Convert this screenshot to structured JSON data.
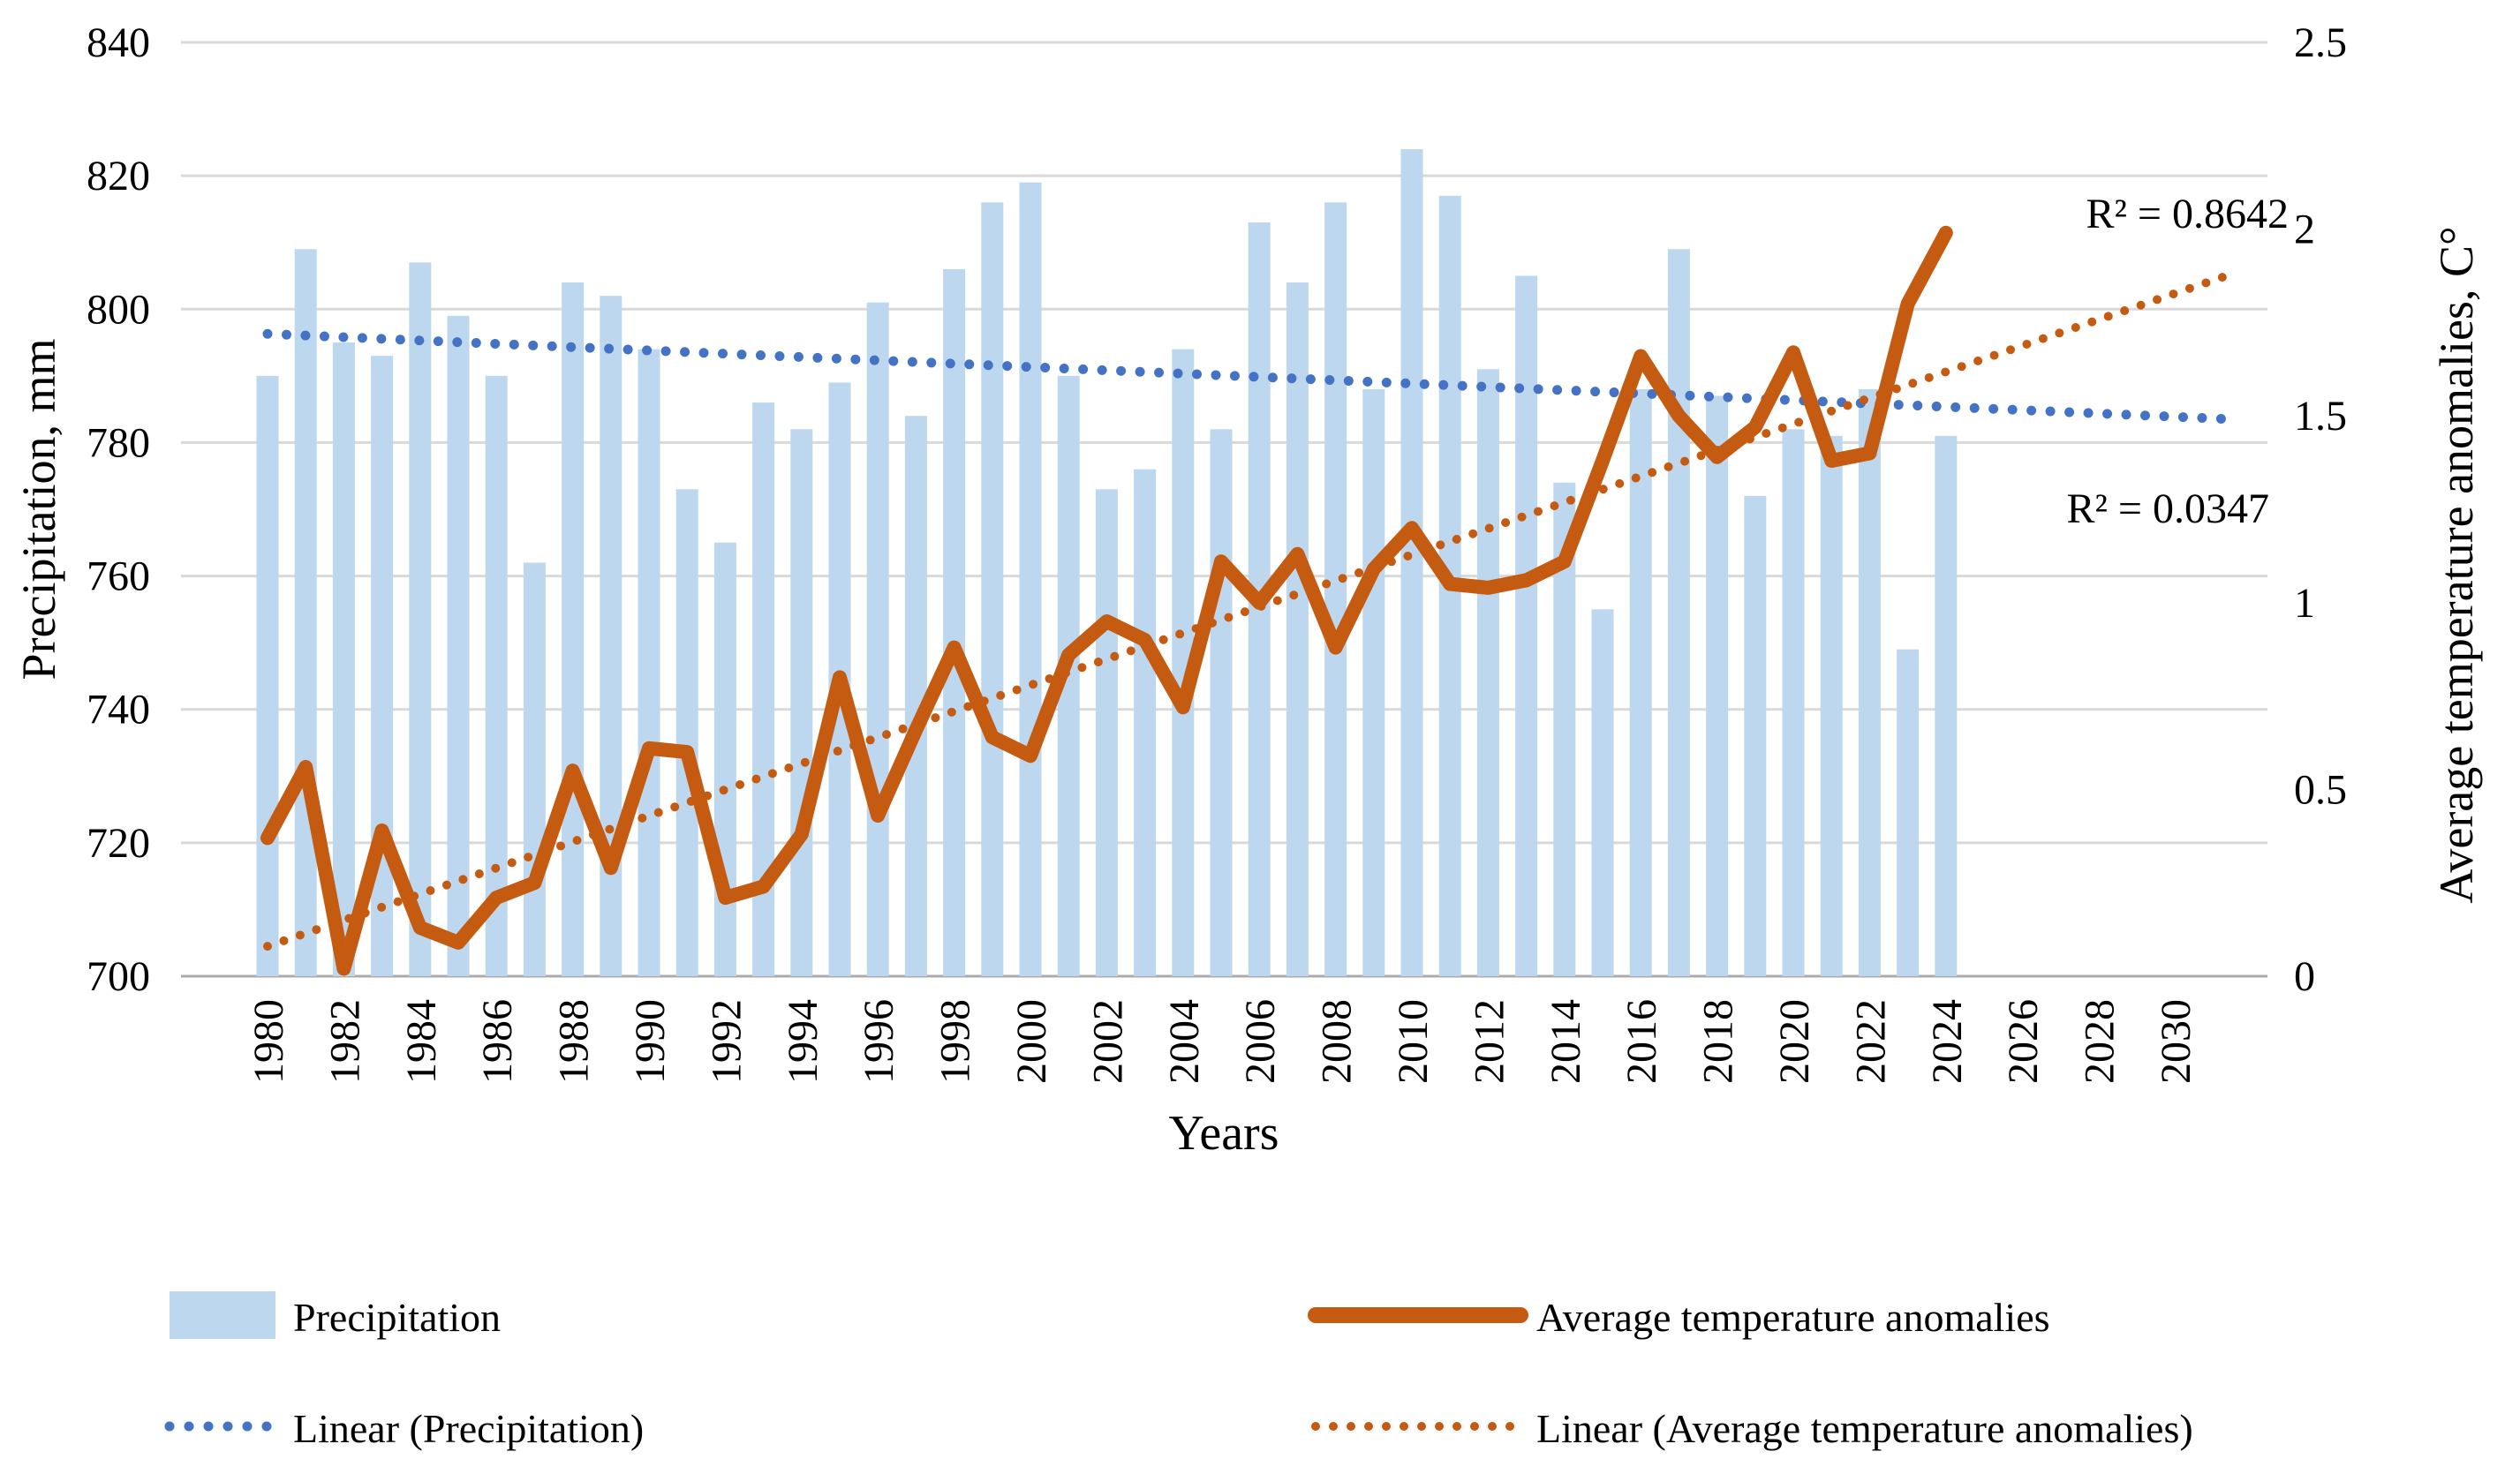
{
  "chart_data": {
    "type": "combo (bar + line + linear trendlines)",
    "title": "",
    "x_axis": {
      "label": "Years",
      "tick_labels": [
        "1980",
        "1982",
        "1984",
        "1986",
        "1988",
        "1990",
        "1992",
        "1994",
        "1996",
        "1998",
        "2000",
        "2002",
        "2004",
        "2006",
        "2008",
        "2010",
        "2012",
        "2014",
        "2016",
        "2018",
        "2020",
        "2022",
        "2024",
        "2026",
        "2028",
        "2030"
      ],
      "tick_start_year": 1980,
      "tick_step_years": 2,
      "range_years": [
        1980,
        2031.5
      ]
    },
    "y_left": {
      "label": "Precipitation, mm",
      "min": 700,
      "max": 840,
      "step": 20,
      "tick_labels": [
        "700",
        "720",
        "740",
        "760",
        "780",
        "800",
        "820",
        "840"
      ],
      "tick_values": [
        700,
        720,
        740,
        760,
        780,
        800,
        820,
        840
      ]
    },
    "y_right": {
      "label": "Average temperature anomalies, C°",
      "min": 0,
      "max": 2.5,
      "step": 0.5,
      "tick_labels": [
        "0",
        "0.5",
        "1",
        "1.5",
        "2",
        "2.5"
      ],
      "tick_values": [
        0,
        0.5,
        1,
        1.5,
        2,
        2.5
      ]
    },
    "years": [
      1980,
      1981,
      1982,
      1983,
      1984,
      1985,
      1986,
      1987,
      1988,
      1989,
      1990,
      1991,
      1992,
      1993,
      1994,
      1995,
      1996,
      1997,
      1998,
      1999,
      2000,
      2001,
      2002,
      2003,
      2004,
      2005,
      2006,
      2007,
      2008,
      2009,
      2010,
      2011,
      2012,
      2013,
      2014,
      2015,
      2016,
      2017,
      2018,
      2019,
      2020,
      2021,
      2022,
      2023,
      2024
    ],
    "series": [
      {
        "name": "Precipitation",
        "type": "bar",
        "axis": "left",
        "color": "#BDD7EE",
        "values": [
          790,
          809,
          795,
          793,
          807,
          799,
          790,
          762,
          804,
          802,
          794,
          773,
          765,
          786,
          782,
          789,
          801,
          784,
          806,
          816,
          819,
          790,
          773,
          776,
          794,
          782,
          813,
          804,
          816,
          788,
          824,
          817,
          791,
          805,
          774,
          755,
          788,
          809,
          787,
          772,
          782,
          781,
          788,
          749,
          781
        ]
      },
      {
        "name": "Average temperature anomalies",
        "type": "line",
        "axis": "right",
        "color": "#C55A11",
        "values": [
          0.37,
          0.56,
          0.02,
          0.39,
          0.13,
          0.09,
          0.21,
          0.25,
          0.55,
          0.29,
          0.61,
          0.6,
          0.21,
          0.24,
          0.38,
          0.8,
          0.43,
          0.66,
          0.88,
          0.64,
          0.59,
          0.86,
          0.95,
          0.9,
          0.72,
          1.11,
          1.0,
          1.13,
          0.88,
          1.09,
          1.2,
          1.05,
          1.04,
          1.06,
          1.11,
          1.38,
          1.66,
          1.5,
          1.39,
          1.47,
          1.67,
          1.38,
          1.4,
          1.8,
          1.99
        ]
      },
      {
        "name": "Linear (Precipitation)",
        "type": "linear-trend",
        "axis": "left",
        "style": "dotted",
        "color": "#4472C4",
        "start_year": 1980,
        "start_value": 796.3,
        "end_year": 2031.5,
        "end_value": 783.5,
        "r2": 0.0347
      },
      {
        "name": "Linear (Average temperature anomalies)",
        "type": "linear-trend",
        "axis": "right",
        "style": "dotted",
        "color": "#C55A11",
        "start_year": 1980,
        "start_value": 0.08,
        "end_year": 2031.5,
        "end_value": 1.88,
        "r2": 0.8642
      }
    ],
    "annotations": {
      "r2_temperature": "R² = 0.8642",
      "r2_precipitation": "R² = 0.0347"
    },
    "legend": {
      "position": "bottom",
      "items": [
        {
          "label": "Precipitation",
          "swatch": "bar"
        },
        {
          "label": "Average temperature anomalies",
          "swatch": "thick-line"
        },
        {
          "label": "Linear (Precipitation)",
          "swatch": "dotted-line"
        },
        {
          "label": "Linear (Average temperature anomalies)",
          "swatch": "dotted-line"
        }
      ]
    },
    "grid": "horizontal gridlines every 20 mm, light grey"
  },
  "colors": {
    "bar": "#BDD7EE",
    "temperature_line": "#C55A11",
    "trend_precipitation": "#4472C4",
    "trend_temperature": "#C55A11",
    "gridline": "#D9D9D9",
    "axis_line": "#ABABAB",
    "text": "#000000",
    "background": "#FFFFFF"
  }
}
